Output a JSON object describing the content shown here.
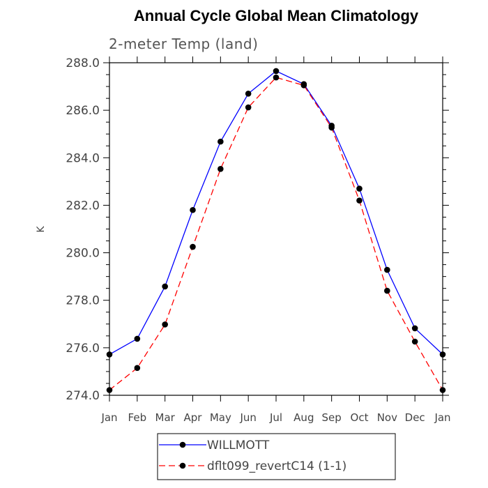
{
  "chart_data": {
    "type": "line",
    "title": "Annual Cycle Global Mean Climatology",
    "subtitle": "2-meter Temp (land)",
    "xlabel": "",
    "ylabel": "K",
    "categories": [
      "Jan",
      "Feb",
      "Mar",
      "Apr",
      "May",
      "Jun",
      "Jul",
      "Aug",
      "Sep",
      "Oct",
      "Nov",
      "Dec",
      "Jan"
    ],
    "ylim": [
      274.0,
      288.0
    ],
    "yticks": [
      "274.0",
      "276.0",
      "278.0",
      "280.0",
      "282.0",
      "284.0",
      "286.0",
      "288.0"
    ],
    "grid": false,
    "legend_position": "bottom",
    "series": [
      {
        "name": "WILLMOTT",
        "color": "#0000ff",
        "line_style": "solid",
        "marker": "filled-circle",
        "values": [
          275.72,
          276.38,
          278.58,
          281.8,
          284.68,
          286.7,
          287.65,
          287.1,
          285.35,
          282.7,
          279.28,
          276.82,
          275.72
        ]
      },
      {
        "name": "dflt099_revertC14 (1-1)",
        "color": "#ff0000",
        "line_style": "dashed",
        "marker": "filled-circle",
        "values": [
          274.22,
          275.15,
          276.98,
          280.25,
          283.53,
          286.12,
          287.38,
          287.05,
          285.27,
          282.2,
          278.4,
          276.26,
          274.22
        ]
      }
    ]
  }
}
